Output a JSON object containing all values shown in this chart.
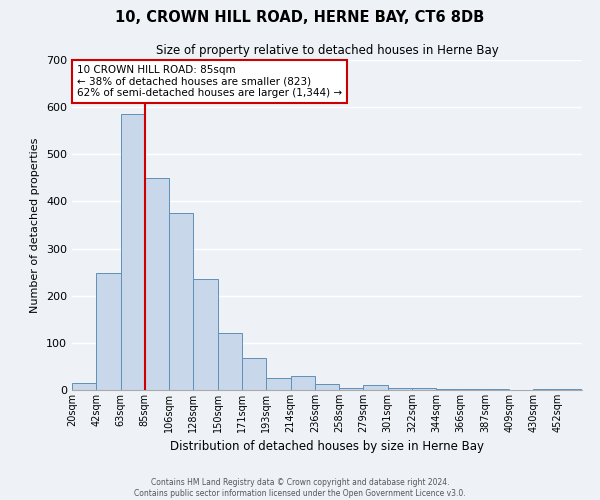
{
  "title": "10, CROWN HILL ROAD, HERNE BAY, CT6 8DB",
  "subtitle": "Size of property relative to detached houses in Herne Bay",
  "xlabel": "Distribution of detached houses by size in Herne Bay",
  "ylabel": "Number of detached properties",
  "bin_labels": [
    "20sqm",
    "42sqm",
    "63sqm",
    "85sqm",
    "106sqm",
    "128sqm",
    "150sqm",
    "171sqm",
    "193sqm",
    "214sqm",
    "236sqm",
    "258sqm",
    "279sqm",
    "301sqm",
    "322sqm",
    "344sqm",
    "366sqm",
    "387sqm",
    "409sqm",
    "430sqm",
    "452sqm"
  ],
  "bar_heights": [
    15,
    248,
    585,
    450,
    375,
    236,
    120,
    67,
    25,
    30,
    12,
    5,
    10,
    5,
    5,
    2,
    2,
    3,
    0,
    3,
    2
  ],
  "bar_color": "#c8d8ea",
  "bar_edge_color": "#6090b8",
  "marker_bin_index": 3,
  "marker_color": "#cc0000",
  "ylim": [
    0,
    700
  ],
  "yticks": [
    0,
    100,
    200,
    300,
    400,
    500,
    600,
    700
  ],
  "annotation_title": "10 CROWN HILL ROAD: 85sqm",
  "annotation_line1": "← 38% of detached houses are smaller (823)",
  "annotation_line2": "62% of semi-detached houses are larger (1,344) →",
  "annotation_box_facecolor": "#ffffff",
  "annotation_box_edgecolor": "#cc0000",
  "footer1": "Contains HM Land Registry data © Crown copyright and database right 2024.",
  "footer2": "Contains public sector information licensed under the Open Government Licence v3.0.",
  "background_color": "#eef2f7",
  "grid_color": "#ffffff",
  "spine_color": "#aaaaaa"
}
